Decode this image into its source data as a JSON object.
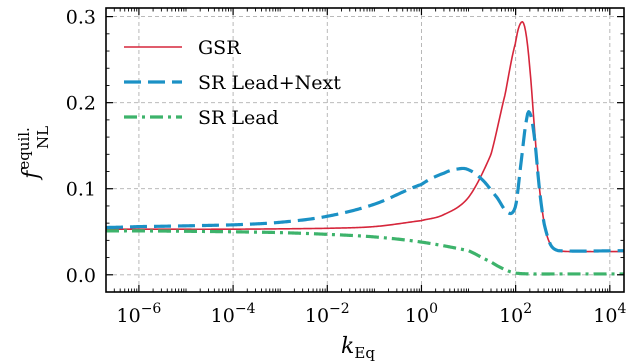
{
  "chart_data": {
    "type": "line",
    "title": "",
    "xlabel": "k",
    "xlabel_sub": "Eq",
    "ylabel": "f",
    "ylabel_sub": "NL",
    "ylabel_sup": "equil.",
    "xscale": "log",
    "xlim": [
      2e-07,
      20000.0
    ],
    "ylim": [
      -0.02,
      0.31
    ],
    "grid": true,
    "legend_position": "top-left",
    "x_ticks": [
      {
        "value": 1e-06,
        "base": "10",
        "exp": "−6"
      },
      {
        "value": 0.0001,
        "base": "10",
        "exp": "−4"
      },
      {
        "value": 0.01,
        "base": "10",
        "exp": "−2"
      },
      {
        "value": 1,
        "base": "10",
        "exp": "0"
      },
      {
        "value": 100,
        "base": "10",
        "exp": "2"
      },
      {
        "value": 10000,
        "base": "10",
        "exp": "4"
      }
    ],
    "y_ticks": [
      {
        "value": 0.0,
        "label": "0.0"
      },
      {
        "value": 0.1,
        "label": "0.1"
      },
      {
        "value": 0.2,
        "label": "0.2"
      },
      {
        "value": 0.3,
        "label": "0.3"
      }
    ],
    "series": [
      {
        "name": "GSR",
        "color": "#d6263b",
        "style": "solid",
        "points": [
          [
            2e-07,
            0.053
          ],
          [
            1e-06,
            0.053
          ],
          [
            0.0001,
            0.053
          ],
          [
            0.01,
            0.054
          ],
          [
            0.1,
            0.056
          ],
          [
            1,
            0.063
          ],
          [
            3,
            0.07
          ],
          [
            10,
            0.09
          ],
          [
            30,
            0.14
          ],
          [
            60,
            0.21
          ],
          [
            100,
            0.27
          ],
          [
            130,
            0.293
          ],
          [
            160,
            0.285
          ],
          [
            200,
            0.24
          ],
          [
            260,
            0.16
          ],
          [
            320,
            0.1
          ],
          [
            420,
            0.055
          ],
          [
            550,
            0.035
          ],
          [
            800,
            0.028
          ],
          [
            2000,
            0.027
          ],
          [
            20000.0,
            0.027
          ]
        ]
      },
      {
        "name": "SR Lead+Next",
        "color": "#1b91c5",
        "style": "dashed",
        "points": [
          [
            2e-07,
            0.055
          ],
          [
            1e-06,
            0.056
          ],
          [
            0.0001,
            0.058
          ],
          [
            0.001,
            0.061
          ],
          [
            0.01,
            0.068
          ],
          [
            0.1,
            0.082
          ],
          [
            1,
            0.105
          ],
          [
            3,
            0.118
          ],
          [
            6,
            0.123
          ],
          [
            10,
            0.122
          ],
          [
            20,
            0.11
          ],
          [
            40,
            0.09
          ],
          [
            70,
            0.072
          ],
          [
            100,
            0.08
          ],
          [
            130,
            0.13
          ],
          [
            170,
            0.18
          ],
          [
            200,
            0.188
          ],
          [
            250,
            0.16
          ],
          [
            320,
            0.1
          ],
          [
            400,
            0.06
          ],
          [
            550,
            0.035
          ],
          [
            800,
            0.028
          ],
          [
            20000.0,
            0.028
          ]
        ]
      },
      {
        "name": "SR Lead",
        "color": "#3db36b",
        "style": "dashdot",
        "points": [
          [
            2e-07,
            0.051
          ],
          [
            1e-06,
            0.051
          ],
          [
            0.0001,
            0.05
          ],
          [
            0.001,
            0.049
          ],
          [
            0.01,
            0.047
          ],
          [
            0.1,
            0.044
          ],
          [
            1,
            0.038
          ],
          [
            10,
            0.028
          ],
          [
            30,
            0.015
          ],
          [
            60,
            0.006
          ],
          [
            100,
            0.002
          ],
          [
            200,
            0.001
          ],
          [
            1000,
            0.001
          ],
          [
            20000.0,
            0.001
          ]
        ]
      }
    ]
  }
}
